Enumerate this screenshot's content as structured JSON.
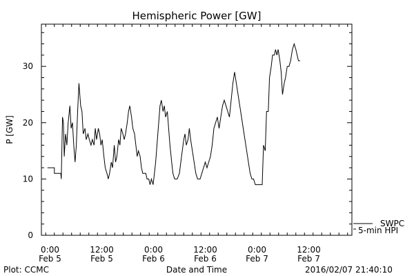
{
  "chart_data": {
    "type": "line",
    "title": "Hemispheric Power [GW]",
    "ylabel": "P [GW]",
    "xlabel": "Date and Time",
    "ylim": [
      0,
      37.5
    ],
    "yticks": [
      0,
      10,
      20,
      30
    ],
    "xticks": [
      {
        "time": "0:00",
        "date": "Feb 5",
        "hours": 0
      },
      {
        "time": "12:00",
        "date": "Feb 5",
        "hours": 12
      },
      {
        "time": "0:00",
        "date": "Feb 6",
        "hours": 24
      },
      {
        "time": "12:00",
        "date": "Feb 6",
        "hours": 36
      },
      {
        "time": "0:00",
        "date": "Feb 7",
        "hours": 48
      },
      {
        "time": "12:00",
        "date": "Feb 7",
        "hours": 60
      }
    ],
    "xlim_hours": [
      -2,
      70
    ],
    "grid": false,
    "series": [
      {
        "name": "SWPC",
        "values": [
          [
            -0.6,
            12
          ],
          [
            1.0,
            12
          ],
          [
            1.0,
            11
          ],
          [
            2.5,
            11
          ],
          [
            2.6,
            10
          ],
          [
            2.9,
            21
          ],
          [
            3.1,
            20
          ],
          [
            3.3,
            14
          ],
          [
            3.6,
            18
          ],
          [
            3.9,
            16
          ],
          [
            4.2,
            20
          ],
          [
            4.6,
            23
          ],
          [
            4.9,
            19
          ],
          [
            5.2,
            20
          ],
          [
            5.5,
            16
          ],
          [
            5.8,
            13
          ],
          [
            6.1,
            16
          ],
          [
            6.4,
            22
          ],
          [
            6.7,
            27
          ],
          [
            7.1,
            23
          ],
          [
            7.4,
            22
          ],
          [
            7.7,
            18
          ],
          [
            8.1,
            19
          ],
          [
            8.4,
            17
          ],
          [
            8.8,
            18
          ],
          [
            9.1,
            17
          ],
          [
            9.5,
            16
          ],
          [
            9.8,
            17
          ],
          [
            10.2,
            16
          ],
          [
            10.5,
            19
          ],
          [
            10.8,
            17
          ],
          [
            11.2,
            19
          ],
          [
            11.5,
            18
          ],
          [
            11.8,
            16
          ],
          [
            12.1,
            17
          ],
          [
            12.5,
            14
          ],
          [
            12.8,
            12
          ],
          [
            13.2,
            11
          ],
          [
            13.5,
            10
          ],
          [
            13.8,
            11
          ],
          [
            14.2,
            13
          ],
          [
            14.5,
            12
          ],
          [
            14.9,
            16
          ],
          [
            15.2,
            13
          ],
          [
            15.5,
            14
          ],
          [
            15.9,
            17
          ],
          [
            16.2,
            16
          ],
          [
            16.5,
            19
          ],
          [
            16.9,
            18
          ],
          [
            17.2,
            17
          ],
          [
            17.5,
            18
          ],
          [
            17.9,
            20
          ],
          [
            18.2,
            22
          ],
          [
            18.5,
            23
          ],
          [
            18.9,
            21
          ],
          [
            19.2,
            19
          ],
          [
            19.6,
            18
          ],
          [
            19.9,
            16
          ],
          [
            20.2,
            14
          ],
          [
            20.5,
            15
          ],
          [
            20.9,
            14
          ],
          [
            21.2,
            12
          ],
          [
            21.5,
            11
          ],
          [
            21.9,
            11
          ],
          [
            22.2,
            11
          ],
          [
            22.5,
            10
          ],
          [
            22.9,
            10
          ],
          [
            23.2,
            9
          ],
          [
            23.5,
            10
          ],
          [
            23.9,
            9
          ],
          [
            24.2,
            11
          ],
          [
            24.5,
            13
          ],
          [
            24.9,
            17
          ],
          [
            25.2,
            20
          ],
          [
            25.5,
            23
          ],
          [
            25.8,
            24
          ],
          [
            26.2,
            22
          ],
          [
            26.5,
            23
          ],
          [
            26.8,
            21
          ],
          [
            27.2,
            22
          ],
          [
            27.5,
            19
          ],
          [
            27.8,
            16
          ],
          [
            28.2,
            13
          ],
          [
            28.5,
            11
          ],
          [
            28.9,
            10
          ],
          [
            29.5,
            10
          ],
          [
            30.0,
            11
          ],
          [
            30.5,
            14
          ],
          [
            31.0,
            17
          ],
          [
            31.3,
            18
          ],
          [
            31.6,
            16
          ],
          [
            32.0,
            17
          ],
          [
            32.3,
            19
          ],
          [
            32.6,
            17
          ],
          [
            33.0,
            15
          ],
          [
            33.4,
            13
          ],
          [
            33.8,
            11
          ],
          [
            34.2,
            10
          ],
          [
            34.8,
            10
          ],
          [
            35.2,
            11
          ],
          [
            35.6,
            12
          ],
          [
            36.0,
            13
          ],
          [
            36.4,
            12
          ],
          [
            36.8,
            13
          ],
          [
            37.2,
            14
          ],
          [
            37.6,
            16
          ],
          [
            38.0,
            19
          ],
          [
            38.4,
            20
          ],
          [
            38.8,
            21
          ],
          [
            39.2,
            19
          ],
          [
            39.6,
            21
          ],
          [
            40.0,
            23
          ],
          [
            40.4,
            24
          ],
          [
            40.8,
            23
          ],
          [
            41.2,
            22
          ],
          [
            41.6,
            21
          ],
          [
            42.0,
            24
          ],
          [
            42.4,
            27
          ],
          [
            42.8,
            29
          ],
          [
            43.2,
            27
          ],
          [
            43.6,
            25
          ],
          [
            44.0,
            23
          ],
          [
            44.4,
            21
          ],
          [
            44.8,
            19
          ],
          [
            45.2,
            17
          ],
          [
            45.6,
            15
          ],
          [
            46.0,
            13
          ],
          [
            46.4,
            11
          ],
          [
            46.8,
            10
          ],
          [
            47.2,
            10
          ],
          [
            47.6,
            9
          ],
          [
            48.5,
            9
          ],
          [
            49.2,
            9
          ],
          [
            49.5,
            16
          ],
          [
            49.9,
            15
          ],
          [
            50.2,
            22
          ],
          [
            50.6,
            22
          ],
          [
            50.9,
            28
          ],
          [
            51.3,
            30
          ],
          [
            51.6,
            32
          ],
          [
            52.0,
            32
          ],
          [
            52.3,
            33
          ],
          [
            52.6,
            32
          ],
          [
            52.9,
            33
          ],
          [
            53.3,
            31
          ],
          [
            53.6,
            29
          ],
          [
            53.9,
            25
          ],
          [
            54.3,
            27
          ],
          [
            54.6,
            28
          ],
          [
            55.0,
            30
          ],
          [
            55.4,
            30
          ],
          [
            55.8,
            31
          ],
          [
            56.2,
            33
          ],
          [
            56.6,
            34
          ],
          [
            57.0,
            33
          ],
          [
            57.3,
            32
          ],
          [
            57.6,
            31
          ],
          [
            58.0,
            31
          ]
        ]
      }
    ],
    "annotations": {
      "plot_credit": "Plot: CCMC",
      "timestamp": "2016/02/07 21:40:10"
    },
    "legend": {
      "placement": "bottom-right",
      "entries": [
        "SWPC",
        "5-min HPI"
      ]
    }
  }
}
